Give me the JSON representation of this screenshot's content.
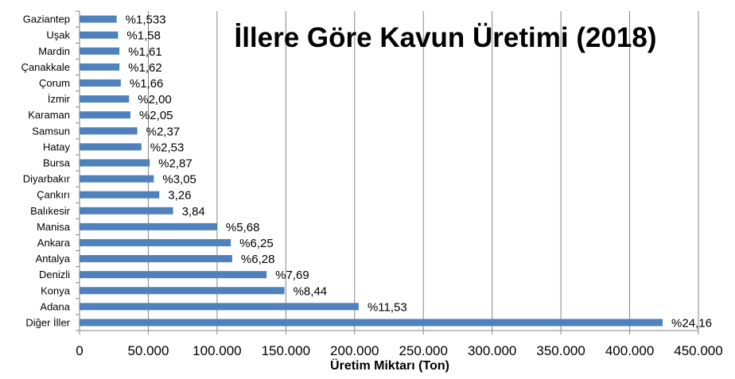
{
  "chart_data": {
    "type": "bar",
    "orientation": "horizontal",
    "title": "İllere Göre Kavun Üretimi (2018)",
    "xlabel": "Üretim Miktarı  (Ton)",
    "ylabel": "",
    "xlim": [
      0,
      450000
    ],
    "xticks": [
      0,
      50000,
      100000,
      150000,
      200000,
      250000,
      300000,
      350000,
      400000,
      450000
    ],
    "xtick_labels": [
      "0",
      "50.000",
      "100.000",
      "150.000",
      "200.000",
      "250.000",
      "300.000",
      "350.000",
      "400.000",
      "450.000"
    ],
    "grid": true,
    "bar_color": "#4f81bd",
    "categories": [
      "Gaziantep",
      "Uşak",
      "Mardin",
      "Çanakkale",
      "Çorum",
      "İzmir",
      "Karaman",
      "Samsun",
      "Hatay",
      "Bursa",
      "Diyarbakır",
      "Çankırı",
      "Balıkesir",
      "Manisa",
      "Ankara",
      "Antalya",
      "Denizli",
      "Konya",
      "Adana",
      "Diğer İller"
    ],
    "values": [
      27000,
      28000,
      29000,
      29000,
      30000,
      36000,
      37000,
      42000,
      45000,
      51000,
      54000,
      58000,
      68000,
      100000,
      110000,
      111000,
      136000,
      149000,
      203000,
      424000
    ],
    "data_labels": [
      "%1,533",
      "%1,58",
      "%1,61",
      "%1,62",
      "%1,66",
      "%2,00",
      "%2,05",
      "%2,37",
      "%2,53",
      "%2,87",
      "%3,05",
      "3,26",
      "3,84",
      "%5,68",
      "%6,25",
      "%6,28",
      "%7,69",
      "%8,44",
      "%11,53",
      "%24,16"
    ]
  }
}
